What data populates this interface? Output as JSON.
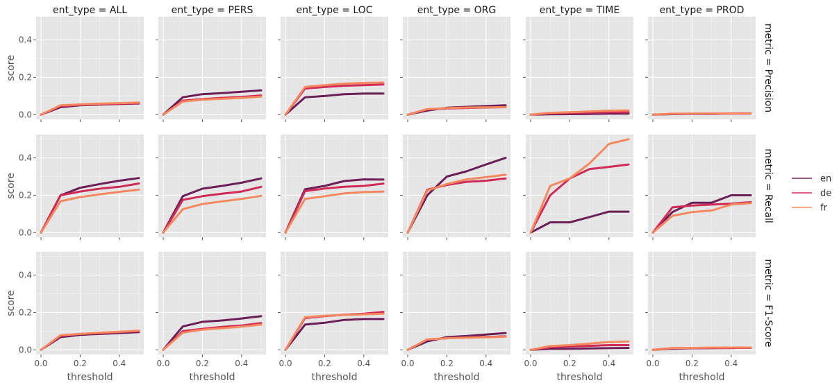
{
  "chart_data": {
    "type": "line",
    "facet_column_prefix": "ent_type = ",
    "facet_row_prefix": "metric = ",
    "columns": [
      "ALL",
      "PERS",
      "LOC",
      "ORG",
      "TIME",
      "PROD"
    ],
    "rows": [
      "Precision",
      "Recall",
      "F1-Score"
    ],
    "xlabel": "threshold",
    "ylabel": "score",
    "xlim": [
      -0.025,
      0.525
    ],
    "ylim": [
      -0.025,
      0.525
    ],
    "xticks": [
      0.0,
      0.2,
      0.4
    ],
    "xtick_labels": [
      "0.0",
      "0.2",
      "0.4"
    ],
    "yticks": [
      0.0,
      0.2,
      0.4
    ],
    "ytick_labels": [
      "0.0",
      "0.2",
      "0.4"
    ],
    "x": [
      0.0,
      0.1,
      0.2,
      0.3,
      0.4,
      0.5
    ],
    "series_names": [
      "en",
      "de",
      "fr"
    ],
    "colors": {
      "en": "#6b1f57",
      "de": "#d02a56",
      "fr": "#f5885f",
      "panel_bg": "#e5e5e5",
      "grid": "#ffffff"
    },
    "legend_position": "right",
    "grid": true,
    "panels": {
      "Precision": {
        "ALL": {
          "en": [
            0.0,
            0.04,
            0.05,
            0.054,
            0.057,
            0.06
          ],
          "de": [
            0.0,
            0.046,
            0.052,
            0.056,
            0.059,
            0.062
          ],
          "fr": [
            0.0,
            0.05,
            0.055,
            0.059,
            0.062,
            0.065
          ]
        },
        "PERS": {
          "en": [
            0.0,
            0.093,
            0.11,
            0.115,
            0.123,
            0.13
          ],
          "de": [
            0.0,
            0.075,
            0.083,
            0.09,
            0.095,
            0.103
          ],
          "fr": [
            0.0,
            0.07,
            0.08,
            0.085,
            0.09,
            0.097
          ]
        },
        "LOC": {
          "en": [
            0.0,
            0.093,
            0.1,
            0.11,
            0.113,
            0.113
          ],
          "de": [
            0.0,
            0.14,
            0.148,
            0.155,
            0.158,
            0.162
          ],
          "fr": [
            0.0,
            0.148,
            0.158,
            0.166,
            0.17,
            0.172
          ]
        },
        "ORG": {
          "en": [
            0.0,
            0.022,
            0.037,
            0.042,
            0.046,
            0.05
          ],
          "de": [
            0.0,
            0.028,
            0.033,
            0.036,
            0.038,
            0.04
          ],
          "fr": [
            0.0,
            0.03,
            0.035,
            0.038,
            0.039,
            0.04
          ]
        },
        "TIME": {
          "en": [
            0.0,
            0.002,
            0.003,
            0.004,
            0.005,
            0.005
          ],
          "de": [
            0.0,
            0.007,
            0.009,
            0.011,
            0.013,
            0.013
          ],
          "fr": [
            0.0,
            0.01,
            0.013,
            0.017,
            0.021,
            0.023
          ]
        },
        "PROD": {
          "en": [
            0.0,
            0.003,
            0.004,
            0.004,
            0.005,
            0.006
          ],
          "de": [
            0.0,
            0.004,
            0.005,
            0.005,
            0.005,
            0.006
          ],
          "fr": [
            0.0,
            0.005,
            0.005,
            0.006,
            0.006,
            0.006
          ]
        }
      },
      "Recall": {
        "ALL": {
          "en": [
            0.0,
            0.2,
            0.24,
            0.26,
            0.278,
            0.292
          ],
          "de": [
            0.0,
            0.2,
            0.22,
            0.235,
            0.245,
            0.263
          ],
          "fr": [
            0.0,
            0.168,
            0.19,
            0.205,
            0.218,
            0.23
          ]
        },
        "PERS": {
          "en": [
            0.0,
            0.195,
            0.235,
            0.25,
            0.267,
            0.29
          ],
          "de": [
            0.0,
            0.175,
            0.195,
            0.208,
            0.22,
            0.245
          ],
          "fr": [
            0.0,
            0.125,
            0.153,
            0.167,
            0.18,
            0.197
          ]
        },
        "LOC": {
          "en": [
            0.0,
            0.232,
            0.25,
            0.276,
            0.285,
            0.284
          ],
          "de": [
            0.0,
            0.222,
            0.236,
            0.245,
            0.25,
            0.262
          ],
          "fr": [
            0.0,
            0.18,
            0.195,
            0.21,
            0.217,
            0.22
          ]
        },
        "ORG": {
          "en": [
            0.0,
            0.2,
            0.3,
            0.328,
            0.365,
            0.4
          ],
          "de": [
            0.0,
            0.23,
            0.255,
            0.272,
            0.278,
            0.29
          ],
          "fr": [
            0.0,
            0.225,
            0.26,
            0.285,
            0.297,
            0.31
          ]
        },
        "TIME": {
          "en": [
            0.0,
            0.055,
            0.055,
            0.083,
            0.112,
            0.112
          ],
          "de": [
            0.0,
            0.2,
            0.29,
            0.34,
            0.352,
            0.365
          ],
          "fr": [
            0.0,
            0.25,
            0.29,
            0.37,
            0.475,
            0.5
          ]
        },
        "PROD": {
          "en": [
            0.0,
            0.11,
            0.16,
            0.16,
            0.2,
            0.2
          ],
          "de": [
            0.0,
            0.135,
            0.145,
            0.15,
            0.155,
            0.163
          ],
          "fr": [
            0.0,
            0.09,
            0.11,
            0.118,
            0.15,
            0.158
          ]
        }
      },
      "F1-Score": {
        "ALL": {
          "en": [
            0.0,
            0.068,
            0.08,
            0.085,
            0.09,
            0.095
          ],
          "de": [
            0.0,
            0.075,
            0.085,
            0.09,
            0.095,
            0.1
          ],
          "fr": [
            0.0,
            0.078,
            0.085,
            0.092,
            0.097,
            0.102
          ]
        },
        "PERS": {
          "en": [
            0.0,
            0.125,
            0.15,
            0.157,
            0.168,
            0.18
          ],
          "de": [
            0.0,
            0.1,
            0.112,
            0.123,
            0.13,
            0.143
          ],
          "fr": [
            0.0,
            0.092,
            0.108,
            0.116,
            0.124,
            0.135
          ]
        },
        "LOC": {
          "en": [
            0.0,
            0.135,
            0.145,
            0.16,
            0.165,
            0.165
          ],
          "de": [
            0.0,
            0.17,
            0.18,
            0.188,
            0.193,
            0.203
          ],
          "fr": [
            0.0,
            0.175,
            0.182,
            0.187,
            0.19,
            0.193
          ]
        },
        "ORG": {
          "en": [
            0.0,
            0.045,
            0.068,
            0.074,
            0.082,
            0.09
          ],
          "de": [
            0.0,
            0.055,
            0.062,
            0.066,
            0.069,
            0.072
          ],
          "fr": [
            0.0,
            0.056,
            0.062,
            0.065,
            0.067,
            0.07
          ]
        },
        "TIME": {
          "en": [
            0.0,
            0.005,
            0.006,
            0.007,
            0.009,
            0.01
          ],
          "de": [
            0.0,
            0.013,
            0.018,
            0.021,
            0.025,
            0.025
          ],
          "fr": [
            0.0,
            0.02,
            0.025,
            0.033,
            0.042,
            0.045
          ]
        },
        "PROD": {
          "en": [
            0.0,
            0.006,
            0.008,
            0.009,
            0.01,
            0.011
          ],
          "de": [
            0.0,
            0.008,
            0.01,
            0.01,
            0.01,
            0.011
          ],
          "fr": [
            0.0,
            0.01,
            0.01,
            0.012,
            0.012,
            0.012
          ]
        }
      }
    }
  }
}
